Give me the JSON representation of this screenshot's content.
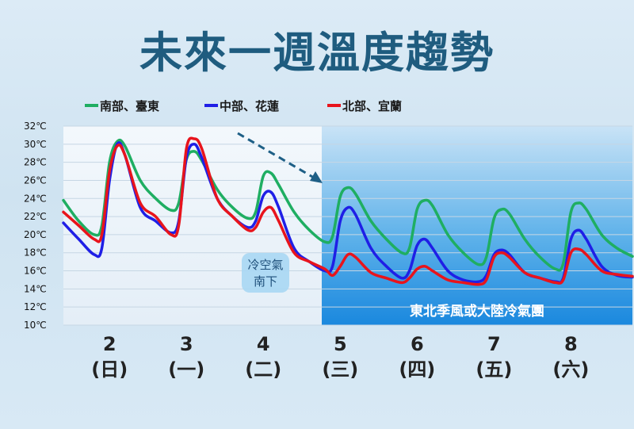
{
  "title": "未來一週溫度趨勢",
  "legend": [
    {
      "label": "南部、臺東",
      "color": "#1fae62"
    },
    {
      "label": "中部、花蓮",
      "color": "#1f1fe6"
    },
    {
      "label": "北部、宜蘭",
      "color": "#e8141c"
    }
  ],
  "annotation_cold_air": [
    "冷空氣",
    "南下"
  ],
  "annotation_band": "東北季風或大陸冷氣團",
  "chart_data": {
    "type": "line",
    "ylim": [
      10,
      32
    ],
    "yticks": [
      32,
      30,
      28,
      26,
      24,
      22,
      20,
      18,
      16,
      14,
      12,
      10
    ],
    "ytick_labels": [
      "32℃",
      "30℃",
      "28℃",
      "26℃",
      "24℃",
      "22℃",
      "20℃",
      "18℃",
      "16℃",
      "14℃",
      "12℃",
      "10℃"
    ],
    "xlim": [
      1.4,
      8.8
    ],
    "x_days": [
      {
        "x": 2,
        "day": "2",
        "weekday": "(日)"
      },
      {
        "x": 3,
        "day": "3",
        "weekday": "(一)"
      },
      {
        "x": 4,
        "day": "4",
        "weekday": "(二)"
      },
      {
        "x": 5,
        "day": "5",
        "weekday": "(三)"
      },
      {
        "x": 6,
        "day": "6",
        "weekday": "(四)"
      },
      {
        "x": 7,
        "day": "7",
        "weekday": "(五)"
      },
      {
        "x": 8,
        "day": "8",
        "weekday": "(六)"
      }
    ],
    "cold_region_start_x": 4.76,
    "series": [
      {
        "name": "南部、臺東",
        "color": "#1fae62",
        "x": [
          1.4,
          1.6,
          1.8,
          1.9,
          2.0,
          2.1,
          2.2,
          2.4,
          2.6,
          2.8,
          2.9,
          3.0,
          3.1,
          3.2,
          3.4,
          3.6,
          3.8,
          3.9,
          4.0,
          4.1,
          4.2,
          4.4,
          4.6,
          4.8,
          4.9,
          5.0,
          5.1,
          5.2,
          5.4,
          5.6,
          5.8,
          5.9,
          6.0,
          6.1,
          6.2,
          6.4,
          6.6,
          6.8,
          6.9,
          7.0,
          7.1,
          7.2,
          7.4,
          7.6,
          7.8,
          7.9,
          8.0,
          8.1,
          8.2,
          8.4,
          8.6,
          8.8
        ],
        "y": [
          23.8,
          21.5,
          20,
          21,
          28,
          30.3,
          29.8,
          26,
          24,
          22.7,
          23.5,
          28.3,
          29.2,
          28.2,
          25,
          23,
          21.8,
          22.5,
          26.5,
          26.8,
          25.5,
          22.5,
          20.5,
          19.2,
          19.8,
          24.2,
          25.2,
          24.5,
          21.5,
          19.5,
          18,
          18.5,
          22.8,
          23.8,
          23.2,
          20,
          18,
          16.7,
          17.5,
          21.8,
          22.8,
          22.3,
          19.5,
          17.5,
          16.2,
          16.8,
          22.5,
          23.5,
          22.8,
          20,
          18.5,
          17.6
        ]
      },
      {
        "name": "中部、花蓮",
        "color": "#1f1fe6",
        "x": [
          1.4,
          1.6,
          1.8,
          1.9,
          2.0,
          2.1,
          2.2,
          2.4,
          2.6,
          2.8,
          2.9,
          3.0,
          3.1,
          3.2,
          3.4,
          3.6,
          3.8,
          3.9,
          4.0,
          4.1,
          4.2,
          4.4,
          4.6,
          4.8,
          4.9,
          5.0,
          5.1,
          5.2,
          5.4,
          5.6,
          5.8,
          5.9,
          6.0,
          6.1,
          6.2,
          6.4,
          6.6,
          6.8,
          6.9,
          7.0,
          7.1,
          7.2,
          7.4,
          7.6,
          7.8,
          7.9,
          8.0,
          8.1,
          8.2,
          8.4,
          8.6,
          8.8
        ],
        "y": [
          21.3,
          19.5,
          17.8,
          18.5,
          26,
          30,
          28.8,
          23,
          21.5,
          20.2,
          21.5,
          28.5,
          30,
          28.5,
          24,
          22,
          20.8,
          21.5,
          24.3,
          24.7,
          23,
          18.5,
          17,
          16,
          16.5,
          21.5,
          23,
          22.2,
          18.5,
          16.5,
          15.2,
          16,
          18.8,
          19.5,
          18.5,
          16,
          15,
          14.8,
          15.5,
          17.8,
          18.3,
          17.8,
          15.8,
          15.2,
          14.8,
          15.2,
          19.5,
          20.5,
          19.5,
          16.5,
          15.5,
          15.3
        ]
      },
      {
        "name": "北部、宜蘭",
        "color": "#e8141c",
        "x": [
          1.4,
          1.6,
          1.8,
          1.9,
          2.0,
          2.1,
          2.2,
          2.4,
          2.6,
          2.8,
          2.9,
          3.0,
          3.1,
          3.2,
          3.4,
          3.6,
          3.8,
          3.9,
          4.0,
          4.1,
          4.2,
          4.4,
          4.6,
          4.8,
          4.9,
          5.0,
          5.1,
          5.2,
          5.4,
          5.6,
          5.8,
          5.9,
          6.0,
          6.1,
          6.2,
          6.4,
          6.6,
          6.8,
          6.9,
          7.0,
          7.1,
          7.2,
          7.4,
          7.6,
          7.8,
          7.9,
          8.0,
          8.1,
          8.2,
          8.4,
          8.6,
          8.8
        ],
        "y": [
          22.5,
          21,
          19.5,
          20,
          27,
          29.8,
          28.8,
          23.5,
          22,
          20,
          21,
          29.5,
          30.6,
          29.5,
          24,
          22,
          20.5,
          20.8,
          22.5,
          23,
          21.5,
          18,
          17,
          16.2,
          15.5,
          16.5,
          17.8,
          17.5,
          15.8,
          15.2,
          14.7,
          15.2,
          16.2,
          16.5,
          16,
          15,
          14.7,
          14.5,
          15,
          17.5,
          18,
          17.5,
          15.8,
          15.2,
          14.7,
          15,
          18,
          18.4,
          17.8,
          16,
          15.6,
          15.4
        ]
      }
    ]
  }
}
